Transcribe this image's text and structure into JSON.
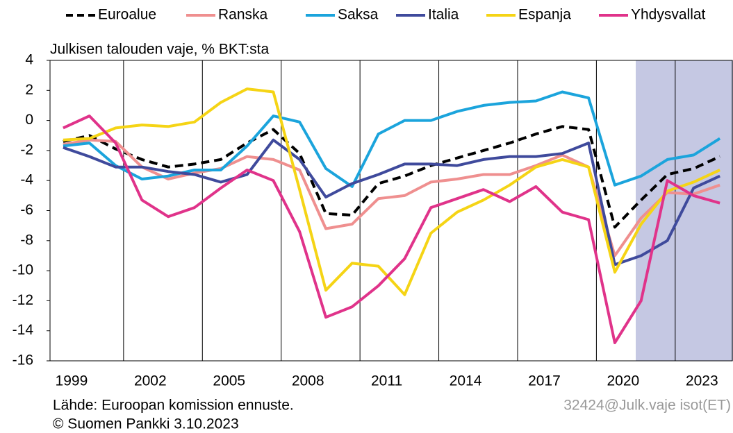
{
  "chart_data": {
    "type": "line",
    "y_label": "Julkisen talouden vaje, % BKT:sta",
    "source": "Lähde: Euroopan komission ennuste.",
    "copyright": "© Suomen Pankki 3.10.2023",
    "code": "32424@Julk.vaje isot(ET)",
    "categories": [
      "1999",
      null,
      null,
      "2002",
      null,
      null,
      "2005",
      null,
      null,
      "2008",
      null,
      null,
      "2011",
      null,
      null,
      "2014",
      null,
      null,
      "2017",
      null,
      null,
      "2020",
      null,
      null,
      "2023",
      null
    ],
    "ylim": [
      -16,
      4
    ],
    "yticks": [
      4,
      2,
      0,
      -2,
      -4,
      -6,
      -8,
      -10,
      -12,
      -14,
      -16
    ],
    "grid": true,
    "series": [
      {
        "name": "Euroalue",
        "color": "#000000",
        "dashed": true,
        "values": [
          -1.4,
          -1.0,
          -1.9,
          -2.6,
          -3.1,
          -2.9,
          -2.6,
          -1.5,
          -0.6,
          -2.2,
          -6.2,
          -6.3,
          -4.2,
          -3.7,
          -3.0,
          -2.5,
          -2.0,
          -1.5,
          -0.9,
          -0.4,
          -0.6,
          -7.1,
          -5.3,
          -3.6,
          -3.2,
          -2.4
        ]
      },
      {
        "name": "Ranska",
        "color": "#ef8f8f",
        "values": [
          -1.6,
          -1.3,
          -1.4,
          -3.1,
          -3.9,
          -3.5,
          -3.2,
          -2.4,
          -2.6,
          -3.3,
          -7.2,
          -6.9,
          -5.2,
          -5.0,
          -4.1,
          -3.9,
          -3.6,
          -3.6,
          -3.0,
          -2.3,
          -3.1,
          -9.0,
          -6.5,
          -4.8,
          -4.9,
          -4.3
        ]
      },
      {
        "name": "Saksa",
        "color": "#1ba4dc",
        "values": [
          -1.7,
          -1.5,
          -3.0,
          -3.9,
          -3.7,
          -3.3,
          -3.3,
          -1.7,
          0.3,
          -0.1,
          -3.2,
          -4.4,
          -0.9,
          0.0,
          0.0,
          0.6,
          1.0,
          1.2,
          1.3,
          1.9,
          1.5,
          -4.3,
          -3.7,
          -2.6,
          -2.3,
          -1.2
        ]
      },
      {
        "name": "Italia",
        "color": "#3f4a9c",
        "values": [
          -1.8,
          -2.4,
          -3.1,
          -3.1,
          -3.4,
          -3.6,
          -4.1,
          -3.6,
          -1.3,
          -2.6,
          -5.1,
          -4.2,
          -3.6,
          -2.9,
          -2.9,
          -3.0,
          -2.6,
          -2.4,
          -2.4,
          -2.2,
          -1.5,
          -9.6,
          -9.0,
          -8.0,
          -4.5,
          -3.7
        ]
      },
      {
        "name": "Espanja",
        "color": "#f5d415",
        "values": [
          -1.3,
          -1.2,
          -0.5,
          -0.3,
          -0.4,
          -0.1,
          1.2,
          2.1,
          1.9,
          -4.6,
          -11.3,
          -9.5,
          -9.7,
          -11.6,
          -7.5,
          -6.1,
          -5.3,
          -4.3,
          -3.1,
          -2.6,
          -3.1,
          -10.1,
          -6.9,
          -4.7,
          -4.1,
          -3.3
        ]
      },
      {
        "name": "Yhdysvallat",
        "color": "#e0338a",
        "values": [
          -0.5,
          0.3,
          -1.5,
          -5.3,
          -6.4,
          -5.8,
          -4.5,
          -3.3,
          -4.0,
          -7.4,
          -13.1,
          -12.4,
          -11.0,
          -9.2,
          -5.8,
          -5.2,
          -4.6,
          -5.4,
          -4.4,
          -6.1,
          -6.6,
          -14.8,
          -12.0,
          -4.0,
          -5.0,
          -5.5
        ]
      }
    ]
  }
}
